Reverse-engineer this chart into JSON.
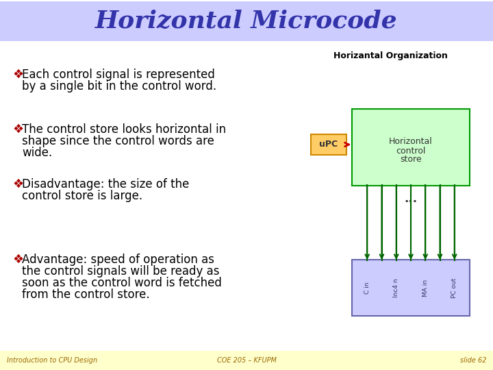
{
  "title": "Horizontal Microcode",
  "title_color": "#3333aa",
  "title_bg": "#ccccff",
  "slide_bg": "#ffffff",
  "footer_bg": "#ffffcc",
  "bullet_points": [
    "Each control signal is represented\nby a single bit in the control word.",
    "The control store looks horizontal in\nshape since the control words are\nwide.",
    "Disadvantage: the size of the\ncontrol store is large.",
    "Advantage: speed of operation as\nthe control signals will be ready as\nsoon as the control word is fetched\nfrom the control store."
  ],
  "footer_left": "Introduction to CPU Design",
  "footer_center": "COE 205 – KFUPM",
  "footer_right": "slide 62",
  "diagram_title": "Horizantal Organization",
  "upc_label": "uPC",
  "cs_label1": "Horizontal",
  "cs_label2": "control",
  "cs_label3": "store",
  "dots": "...",
  "signal_labels": [
    "C in",
    "Inc4 n",
    "MA in",
    "PC out"
  ],
  "text_color": "#000000",
  "bullet_color": "#aa0000",
  "upc_bg": "#ffcc66",
  "upc_border": "#cc8800",
  "cs_bg": "#ccffcc",
  "cs_border": "#009900",
  "regs_bg": "#ccccff",
  "regs_border": "#6666aa",
  "arrow_color": "#cc0000",
  "signal_color": "#006600"
}
